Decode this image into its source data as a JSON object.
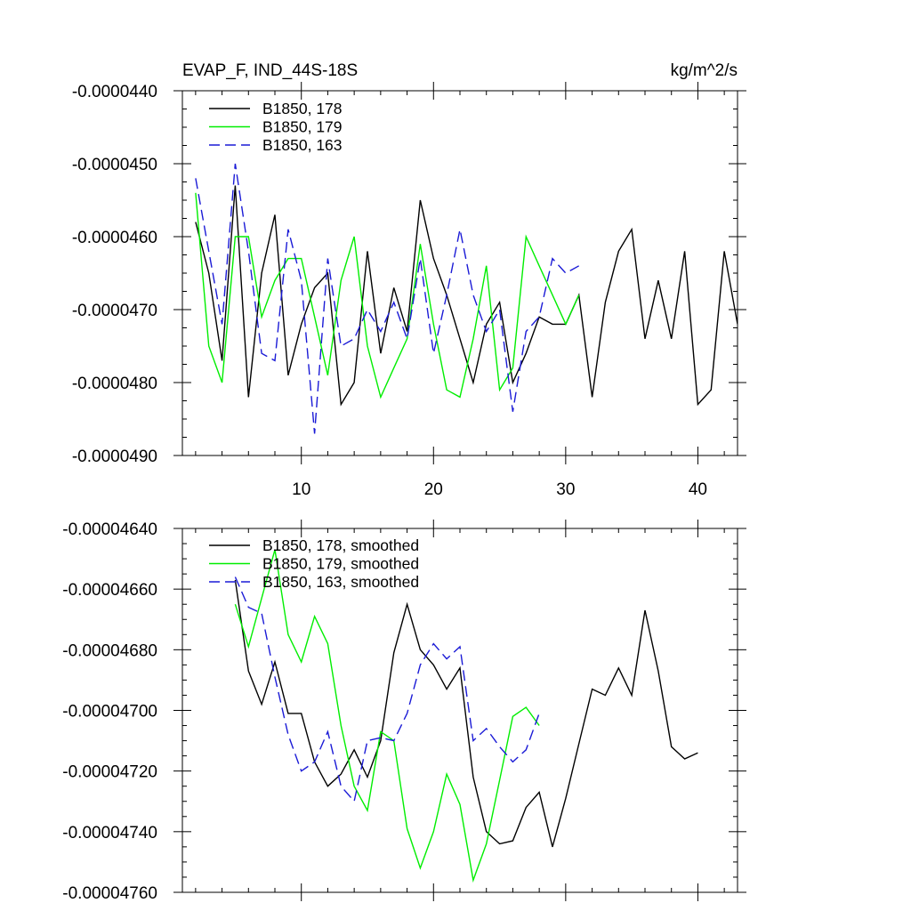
{
  "chart_data": [
    {
      "type": "line",
      "title": "EVAP_F, IND_44S-18S",
      "units": "kg/m^2/s",
      "xlim": [
        1,
        43
      ],
      "ylim": [
        -4.9e-05,
        -4.4e-05
      ],
      "xticks": [
        10,
        20,
        30,
        40
      ],
      "xtick_labels": [
        "10",
        "20",
        "30",
        "40"
      ],
      "yticks": [
        -4.4e-05,
        -4.5e-05,
        -4.6e-05,
        -4.7e-05,
        -4.8e-05,
        -4.9e-05
      ],
      "ytick_labels": [
        "-0.0000440",
        "-0.0000450",
        "-0.0000460",
        "-0.0000470",
        "-0.0000480",
        "-0.0000490"
      ],
      "legend": "top-left",
      "series": [
        {
          "name": "B1850, 178",
          "color": "#000000",
          "dash": "solid",
          "x": [
            2,
            3,
            4,
            5,
            6,
            7,
            8,
            9,
            10,
            11,
            12,
            13,
            14,
            15,
            16,
            17,
            18,
            19,
            20,
            21,
            22,
            23,
            24,
            25,
            26,
            27,
            28,
            29,
            30,
            31,
            32,
            33,
            34,
            35,
            36,
            37,
            38,
            39,
            40,
            41,
            42,
            43
          ],
          "values": [
            -4.58e-05,
            -4.65e-05,
            -4.77e-05,
            -4.53e-05,
            -4.82e-05,
            -4.65e-05,
            -4.57e-05,
            -4.79e-05,
            -4.72e-05,
            -4.67e-05,
            -4.65e-05,
            -4.83e-05,
            -4.8e-05,
            -4.62e-05,
            -4.76e-05,
            -4.67e-05,
            -4.73e-05,
            -4.55e-05,
            -4.63e-05,
            -4.68e-05,
            -4.74e-05,
            -4.8e-05,
            -4.72e-05,
            -4.69e-05,
            -4.8e-05,
            -4.76e-05,
            -4.71e-05,
            -4.72e-05,
            -4.72e-05,
            -4.68e-05,
            -4.82e-05,
            -4.69e-05,
            -4.62e-05,
            -4.59e-05,
            -4.74e-05,
            -4.66e-05,
            -4.74e-05,
            -4.62e-05,
            -4.83e-05,
            -4.81e-05,
            -4.62e-05,
            -4.72e-05
          ]
        },
        {
          "name": "B1850, 179",
          "color": "#00ee00",
          "dash": "solid",
          "x": [
            2,
            3,
            4,
            5,
            6,
            7,
            8,
            9,
            10,
            11,
            12,
            13,
            14,
            15,
            16,
            17,
            18,
            19,
            20,
            21,
            22,
            23,
            24,
            25,
            26,
            27,
            28,
            29,
            30,
            31
          ],
          "values": [
            -4.54e-05,
            -4.75e-05,
            -4.8e-05,
            -4.6e-05,
            -4.6e-05,
            -4.71e-05,
            -4.66e-05,
            -4.63e-05,
            -4.63e-05,
            -4.71e-05,
            -4.79e-05,
            -4.66e-05,
            -4.6e-05,
            -4.75e-05,
            -4.82e-05,
            -4.78e-05,
            -4.74e-05,
            -4.61e-05,
            -4.72e-05,
            -4.81e-05,
            -4.82e-05,
            -4.74e-05,
            -4.64e-05,
            -4.81e-05,
            -4.78e-05,
            -4.6e-05,
            -4.64e-05,
            -4.68e-05,
            -4.72e-05,
            -4.68e-05
          ]
        },
        {
          "name": "B1850, 163",
          "color": "#1a1ad6",
          "dash": "dashed",
          "x": [
            2,
            3,
            4,
            5,
            6,
            7,
            8,
            9,
            10,
            11,
            12,
            13,
            14,
            15,
            16,
            17,
            18,
            19,
            20,
            21,
            22,
            23,
            24,
            25,
            26,
            27,
            28,
            29,
            30,
            31
          ],
          "values": [
            -4.52e-05,
            -4.62e-05,
            -4.72e-05,
            -4.5e-05,
            -4.62e-05,
            -4.76e-05,
            -4.77e-05,
            -4.59e-05,
            -4.66e-05,
            -4.87e-05,
            -4.63e-05,
            -4.75e-05,
            -4.74e-05,
            -4.7e-05,
            -4.73e-05,
            -4.69e-05,
            -4.74e-05,
            -4.63e-05,
            -4.76e-05,
            -4.68e-05,
            -4.59e-05,
            -4.68e-05,
            -4.73e-05,
            -4.7e-05,
            -4.84e-05,
            -4.73e-05,
            -4.71e-05,
            -4.63e-05,
            -4.65e-05,
            -4.64e-05
          ]
        }
      ]
    },
    {
      "type": "line",
      "xlim": [
        1,
        43
      ],
      "ylim": [
        -4.76e-05,
        -4.64e-05
      ],
      "xticks": [
        10,
        20,
        30,
        40
      ],
      "yticks": [
        -4.64e-05,
        -4.66e-05,
        -4.68e-05,
        -4.7e-05,
        -4.72e-05,
        -4.74e-05,
        -4.76e-05
      ],
      "ytick_labels": [
        "-0.00004640",
        "-0.00004660",
        "-0.00004680",
        "-0.00004700",
        "-0.00004720",
        "-0.00004740",
        "-0.00004760"
      ],
      "legend": "top-left",
      "series": [
        {
          "name": "B1850, 178, smoothed",
          "color": "#000000",
          "dash": "solid",
          "x": [
            5,
            6,
            7,
            8,
            9,
            10,
            11,
            12,
            13,
            14,
            15,
            16,
            17,
            18,
            19,
            20,
            21,
            22,
            23,
            24,
            25,
            26,
            27,
            28,
            29,
            30,
            31,
            32,
            33,
            34,
            35,
            36,
            37,
            38,
            39,
            40
          ],
          "values": [
            -4.657e-05,
            -4.687e-05,
            -4.698e-05,
            -4.684e-05,
            -4.701e-05,
            -4.701e-05,
            -4.717e-05,
            -4.725e-05,
            -4.721e-05,
            -4.713e-05,
            -4.722e-05,
            -4.71e-05,
            -4.681e-05,
            -4.665e-05,
            -4.68e-05,
            -4.685e-05,
            -4.693e-05,
            -4.686e-05,
            -4.722e-05,
            -4.74e-05,
            -4.744e-05,
            -4.743e-05,
            -4.732e-05,
            -4.727e-05,
            -4.745e-05,
            -4.729e-05,
            -4.711e-05,
            -4.693e-05,
            -4.695e-05,
            -4.686e-05,
            -4.695e-05,
            -4.667e-05,
            -4.687e-05,
            -4.712e-05,
            -4.716e-05,
            -4.714e-05
          ]
        },
        {
          "name": "B1850, 179, smoothed",
          "color": "#00ee00",
          "dash": "solid",
          "x": [
            5,
            6,
            7,
            8,
            9,
            10,
            11,
            12,
            13,
            14,
            15,
            16,
            17,
            18,
            19,
            20,
            21,
            22,
            23,
            24,
            25,
            26,
            27,
            28
          ],
          "values": [
            -4.665e-05,
            -4.679e-05,
            -4.663e-05,
            -4.647e-05,
            -4.675e-05,
            -4.684e-05,
            -4.669e-05,
            -4.678e-05,
            -4.705e-05,
            -4.725e-05,
            -4.733e-05,
            -4.707e-05,
            -4.71e-05,
            -4.739e-05,
            -4.752e-05,
            -4.74e-05,
            -4.721e-05,
            -4.731e-05,
            -4.756e-05,
            -4.744e-05,
            -4.723e-05,
            -4.702e-05,
            -4.699e-05,
            -4.705e-05
          ]
        },
        {
          "name": "B1850, 163, smoothed",
          "color": "#1a1ad6",
          "dash": "dashed",
          "x": [
            5,
            6,
            7,
            8,
            9,
            10,
            11,
            12,
            13,
            14,
            15,
            16,
            17,
            18,
            19,
            20,
            21,
            22,
            23,
            24,
            25,
            26,
            27,
            28
          ],
          "values": [
            -4.656e-05,
            -4.666e-05,
            -4.668e-05,
            -4.689e-05,
            -4.708e-05,
            -4.72e-05,
            -4.717e-05,
            -4.707e-05,
            -4.725e-05,
            -4.73e-05,
            -4.71e-05,
            -4.709e-05,
            -4.71e-05,
            -4.701e-05,
            -4.685e-05,
            -4.678e-05,
            -4.683e-05,
            -4.679e-05,
            -4.71e-05,
            -4.706e-05,
            -4.712e-05,
            -4.717e-05,
            -4.713e-05,
            -4.701e-05
          ]
        }
      ]
    }
  ]
}
